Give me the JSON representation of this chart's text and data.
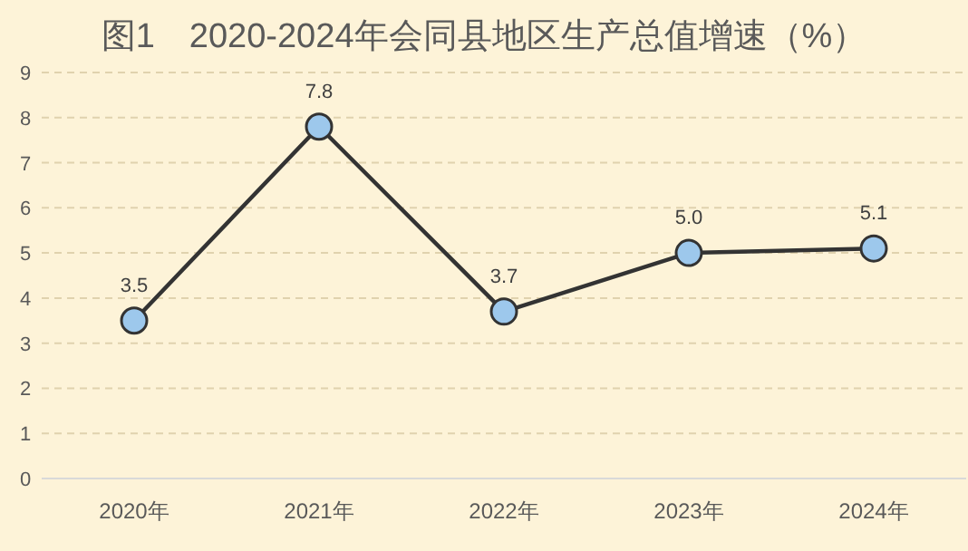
{
  "chart_data": {
    "type": "line",
    "title": "图1　2020-2024年会同县地区生产总值增速（%）",
    "categories": [
      "2020年",
      "2021年",
      "2022年",
      "2023年",
      "2024年"
    ],
    "series": [
      {
        "color": "#333333",
        "values": [
          3.5,
          7.8,
          3.7,
          5.0,
          5.1
        ],
        "value_labels": [
          "3.5",
          "7.8",
          "3.7",
          "5.0",
          "5.1"
        ]
      }
    ],
    "ylim": [
      0,
      9
    ],
    "yticks": [
      0,
      1,
      2,
      3,
      4,
      5,
      6,
      7,
      8,
      9
    ],
    "grid": "y",
    "marker": "circle",
    "line_style": "solid"
  }
}
